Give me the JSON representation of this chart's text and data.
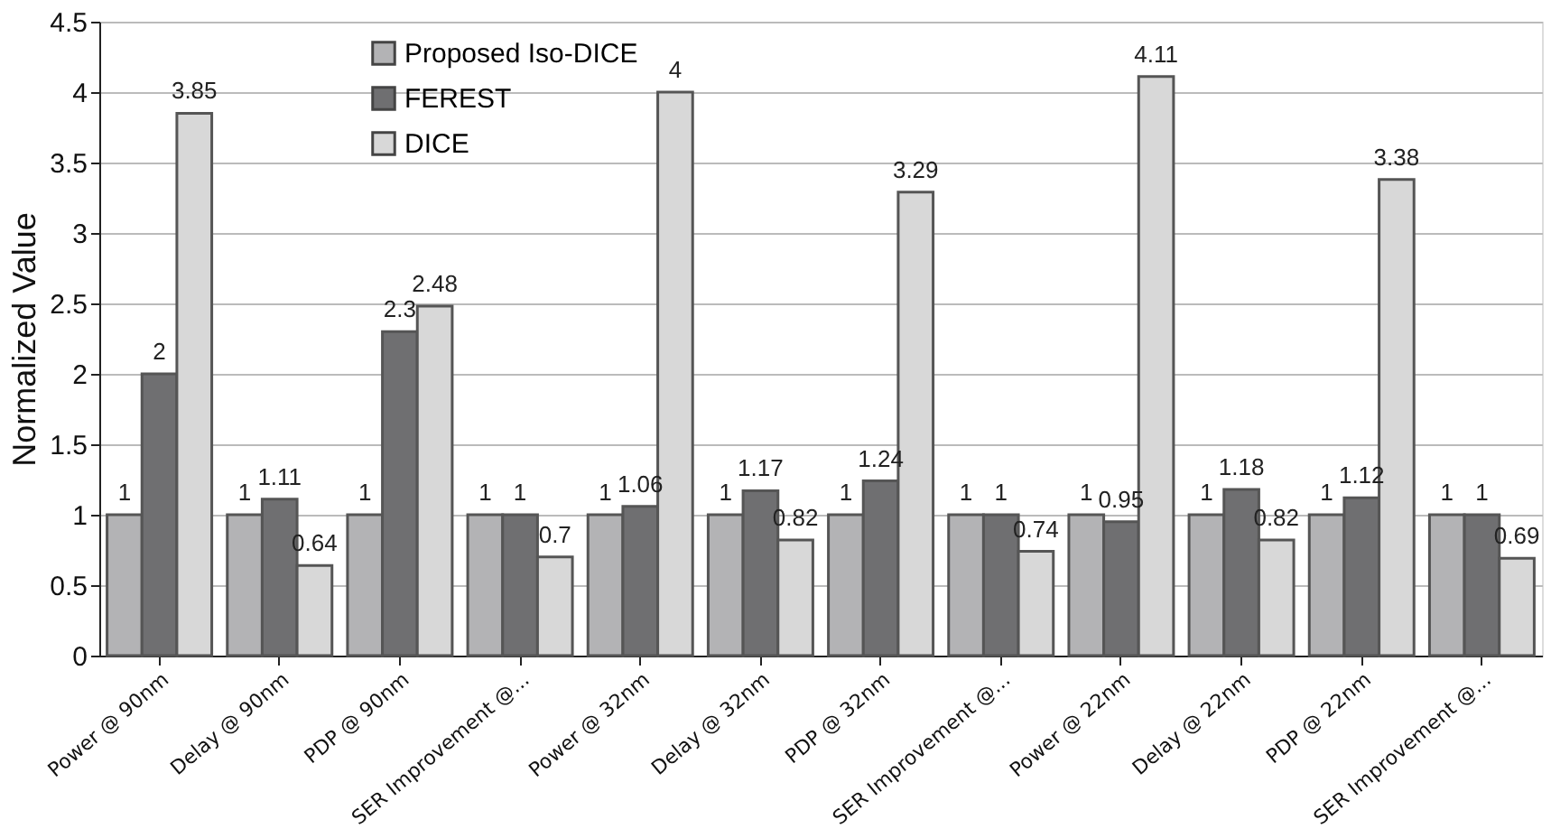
{
  "chart_data": {
    "type": "bar",
    "ylabel": "Normalized Value",
    "categories": [
      "Power @ 90nm",
      "Delay @ 90nm",
      "PDP @ 90nm",
      "SER Improvement @...",
      "Power @ 32nm",
      "Delay @ 32nm",
      "PDP @ 32nm",
      "SER Improvement @...",
      "Power @ 22nm",
      "Delay @ 22nm",
      "PDP @ 22nm",
      "SER Improvement @..."
    ],
    "series": [
      {
        "name": "Proposed Iso-DICE",
        "color": "#b3b3b5",
        "values": [
          1,
          1,
          1,
          1,
          1,
          1,
          1,
          1,
          1,
          1,
          1,
          1
        ]
      },
      {
        "name": "FEREST",
        "color": "#6f6f71",
        "values": [
          2,
          1.11,
          2.3,
          1,
          1.06,
          1.17,
          1.24,
          1,
          0.95,
          1.18,
          1.12,
          1
        ]
      },
      {
        "name": "DICE",
        "color": "#d8d8d8",
        "values": [
          3.85,
          0.64,
          2.48,
          0.7,
          4,
          0.82,
          3.29,
          0.74,
          4.11,
          0.82,
          3.38,
          0.69
        ]
      }
    ],
    "ylim": [
      0,
      4.5
    ],
    "yticks": [
      0,
      0.5,
      1,
      1.5,
      2,
      2.5,
      3,
      3.5,
      4,
      4.5
    ],
    "grid": "y",
    "legend": "top left",
    "data_labels": true
  }
}
